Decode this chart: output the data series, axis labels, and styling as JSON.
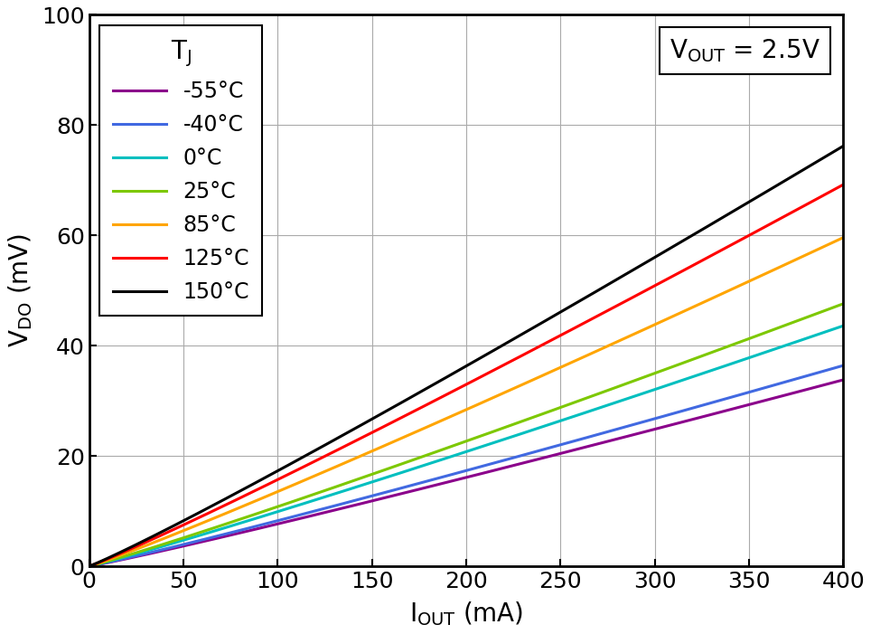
{
  "xlabel": "I",
  "xlabel_sub": "OUT",
  "xlabel_unit": " (mA)",
  "ylabel": "V",
  "ylabel_sub": "DO",
  "ylabel_unit": " (mV)",
  "annotation_main": "V",
  "annotation_sub": "OUT",
  "annotation_rest": " = 2.5V",
  "xlim": [
    0,
    400
  ],
  "ylim": [
    0,
    100
  ],
  "xticks": [
    0,
    50,
    100,
    150,
    200,
    250,
    300,
    350,
    400
  ],
  "yticks": [
    0,
    20,
    40,
    60,
    80,
    100
  ],
  "legend_title": "T",
  "legend_title_sub": "J",
  "series": [
    {
      "label": "-55°C",
      "color": "#8B008B",
      "slope": 0.0845,
      "power": 1.07
    },
    {
      "label": "-40°C",
      "color": "#4169E1",
      "slope": 0.091,
      "power": 1.07
    },
    {
      "label": "0°C",
      "color": "#00BFBF",
      "slope": 0.109,
      "power": 1.07
    },
    {
      "label": "25°C",
      "color": "#7DC800",
      "slope": 0.119,
      "power": 1.07
    },
    {
      "label": "85°C",
      "color": "#FFA500",
      "slope": 0.149,
      "power": 1.07
    },
    {
      "label": "125°C",
      "color": "#FF0000",
      "slope": 0.173,
      "power": 1.07
    },
    {
      "label": "150°C",
      "color": "#000000",
      "slope": 0.1905,
      "power": 1.07
    }
  ],
  "figsize": [
    9.64,
    7.01
  ],
  "dpi": 100,
  "background_color": "#FFFFFF",
  "grid_color": "#AAAAAA",
  "linewidth": 2.2,
  "tick_fontsize": 18,
  "label_fontsize": 20
}
